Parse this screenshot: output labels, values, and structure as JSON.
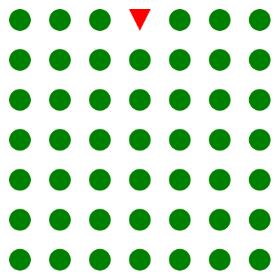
{
  "grid": {
    "rows": 7,
    "cols": 7,
    "odd_one_out": {
      "row": 0,
      "col": 3,
      "shape": "triangle-down"
    }
  },
  "colors": {
    "background": "#ffffff",
    "circle": "#008000",
    "triangle": "#ff0000"
  }
}
